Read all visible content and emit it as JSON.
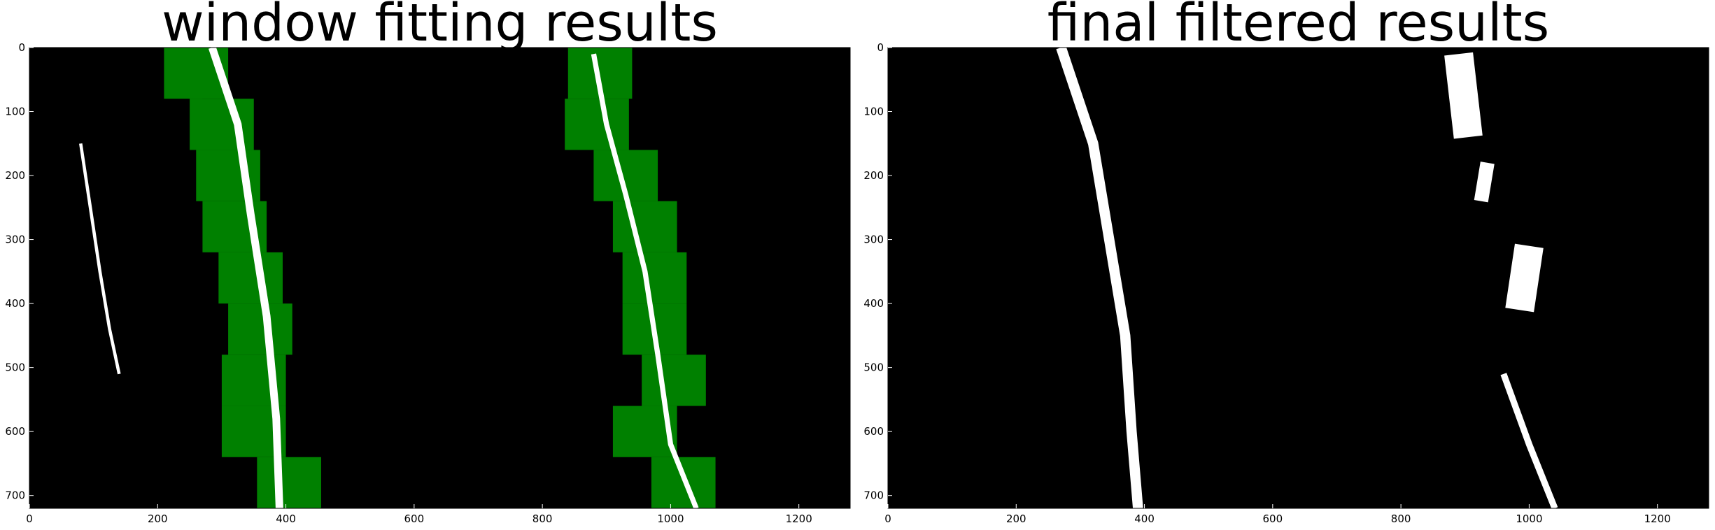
{
  "chart_data": [
    {
      "type": "image",
      "title": "window fitting results",
      "xlim": [
        0,
        1280
      ],
      "ylim": [
        720,
        0
      ],
      "xticks": [
        0,
        200,
        400,
        600,
        800,
        1000,
        1200
      ],
      "yticks": [
        0,
        100,
        200,
        300,
        400,
        500,
        600,
        700
      ],
      "background": "#000000",
      "window_color": "#008000",
      "lane_pixel_color": "#ffffff",
      "windows": [
        {
          "x0": 210,
          "x1": 270,
          "y0": 0,
          "y1": 80
        },
        {
          "x0": 250,
          "x1": 310,
          "y0": 0,
          "y1": 80
        },
        {
          "x0": 250,
          "x1": 350,
          "y0": 80,
          "y1": 160
        },
        {
          "x0": 260,
          "x1": 360,
          "y0": 160,
          "y1": 240
        },
        {
          "x0": 270,
          "x1": 370,
          "y0": 240,
          "y1": 320
        },
        {
          "x0": 295,
          "x1": 395,
          "y0": 320,
          "y1": 400
        },
        {
          "x0": 310,
          "x1": 410,
          "y0": 400,
          "y1": 480
        },
        {
          "x0": 300,
          "x1": 400,
          "y0": 480,
          "y1": 560
        },
        {
          "x0": 300,
          "x1": 400,
          "y0": 560,
          "y1": 640
        },
        {
          "x0": 355,
          "x1": 455,
          "y0": 640,
          "y1": 720
        },
        {
          "x0": 840,
          "x1": 940,
          "y0": 0,
          "y1": 80
        },
        {
          "x0": 835,
          "x1": 935,
          "y0": 80,
          "y1": 160
        },
        {
          "x0": 880,
          "x1": 980,
          "y0": 160,
          "y1": 240
        },
        {
          "x0": 910,
          "x1": 1010,
          "y0": 240,
          "y1": 320
        },
        {
          "x0": 925,
          "x1": 1025,
          "y0": 320,
          "y1": 400
        },
        {
          "x0": 925,
          "x1": 1025,
          "y0": 400,
          "y1": 480
        },
        {
          "x0": 955,
          "x1": 1055,
          "y0": 480,
          "y1": 560
        },
        {
          "x0": 910,
          "x1": 1010,
          "y0": 560,
          "y1": 640
        },
        {
          "x0": 970,
          "x1": 1070,
          "y0": 640,
          "y1": 720
        }
      ],
      "lanes": [
        {
          "points": [
            [
              285,
              0
            ],
            [
              325,
              120
            ],
            [
              345,
              260
            ],
            [
              370,
              420
            ],
            [
              385,
              580
            ],
            [
              390,
              720
            ]
          ],
          "width": 12
        },
        {
          "points": [
            [
              80,
              150
            ],
            [
              95,
              250
            ],
            [
              110,
              350
            ],
            [
              125,
              440
            ],
            [
              140,
              510
            ]
          ],
          "width": 5
        },
        {
          "points": [
            [
              880,
              10
            ],
            [
              900,
              120
            ],
            [
              930,
              230
            ],
            [
              960,
              350
            ],
            [
              980,
              480
            ],
            [
              1000,
              620
            ],
            [
              1040,
              720
            ]
          ],
          "width": 8
        }
      ]
    },
    {
      "type": "image",
      "title": "final filtered results",
      "xlim": [
        0,
        1280
      ],
      "ylim": [
        720,
        0
      ],
      "xticks": [
        0,
        200,
        400,
        600,
        800,
        1000,
        1200
      ],
      "yticks": [
        0,
        100,
        200,
        300,
        400,
        500,
        600,
        700
      ],
      "background": "#000000",
      "lane_pixel_color": "#ffffff",
      "lanes": [
        {
          "points": [
            [
              270,
              0
            ],
            [
              320,
              150
            ],
            [
              345,
              300
            ],
            [
              370,
              450
            ],
            [
              380,
              600
            ],
            [
              390,
              720
            ]
          ],
          "width": 16
        },
        {
          "points": [
            [
              890,
              10
            ],
            [
              905,
              140
            ]
          ],
          "width": 45
        },
        {
          "points": [
            [
              935,
              180
            ],
            [
              925,
              240
            ]
          ],
          "width": 22
        },
        {
          "points": [
            [
              1000,
              310
            ],
            [
              985,
              410
            ]
          ],
          "width": 45
        },
        {
          "points": [
            [
              960,
              510
            ],
            [
              1000,
              620
            ],
            [
              1040,
              720
            ]
          ],
          "width": 10
        }
      ]
    }
  ]
}
